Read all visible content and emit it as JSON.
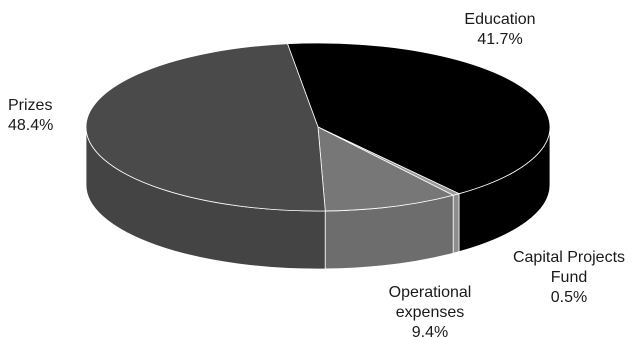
{
  "chart_data": {
    "type": "pie",
    "style": "3d",
    "slices": [
      {
        "label": "Education",
        "value": 41.7,
        "value_text": "41.7%",
        "label_lines": [
          "Education"
        ],
        "color": "#000000"
      },
      {
        "label": "Capital Projects Fund",
        "value": 0.5,
        "value_text": "0.5%",
        "label_lines": [
          "Capital Projects",
          "Fund"
        ],
        "color": "#9a9a9a"
      },
      {
        "label": "Operational expenses",
        "value": 9.4,
        "value_text": "9.4%",
        "label_lines": [
          "Operational",
          "expenses"
        ],
        "color": "#777777"
      },
      {
        "label": "Prizes",
        "value": 48.4,
        "value_text": "48.4%",
        "label_lines": [
          "Prizes"
        ],
        "color": "#4a4a4a"
      }
    ]
  }
}
